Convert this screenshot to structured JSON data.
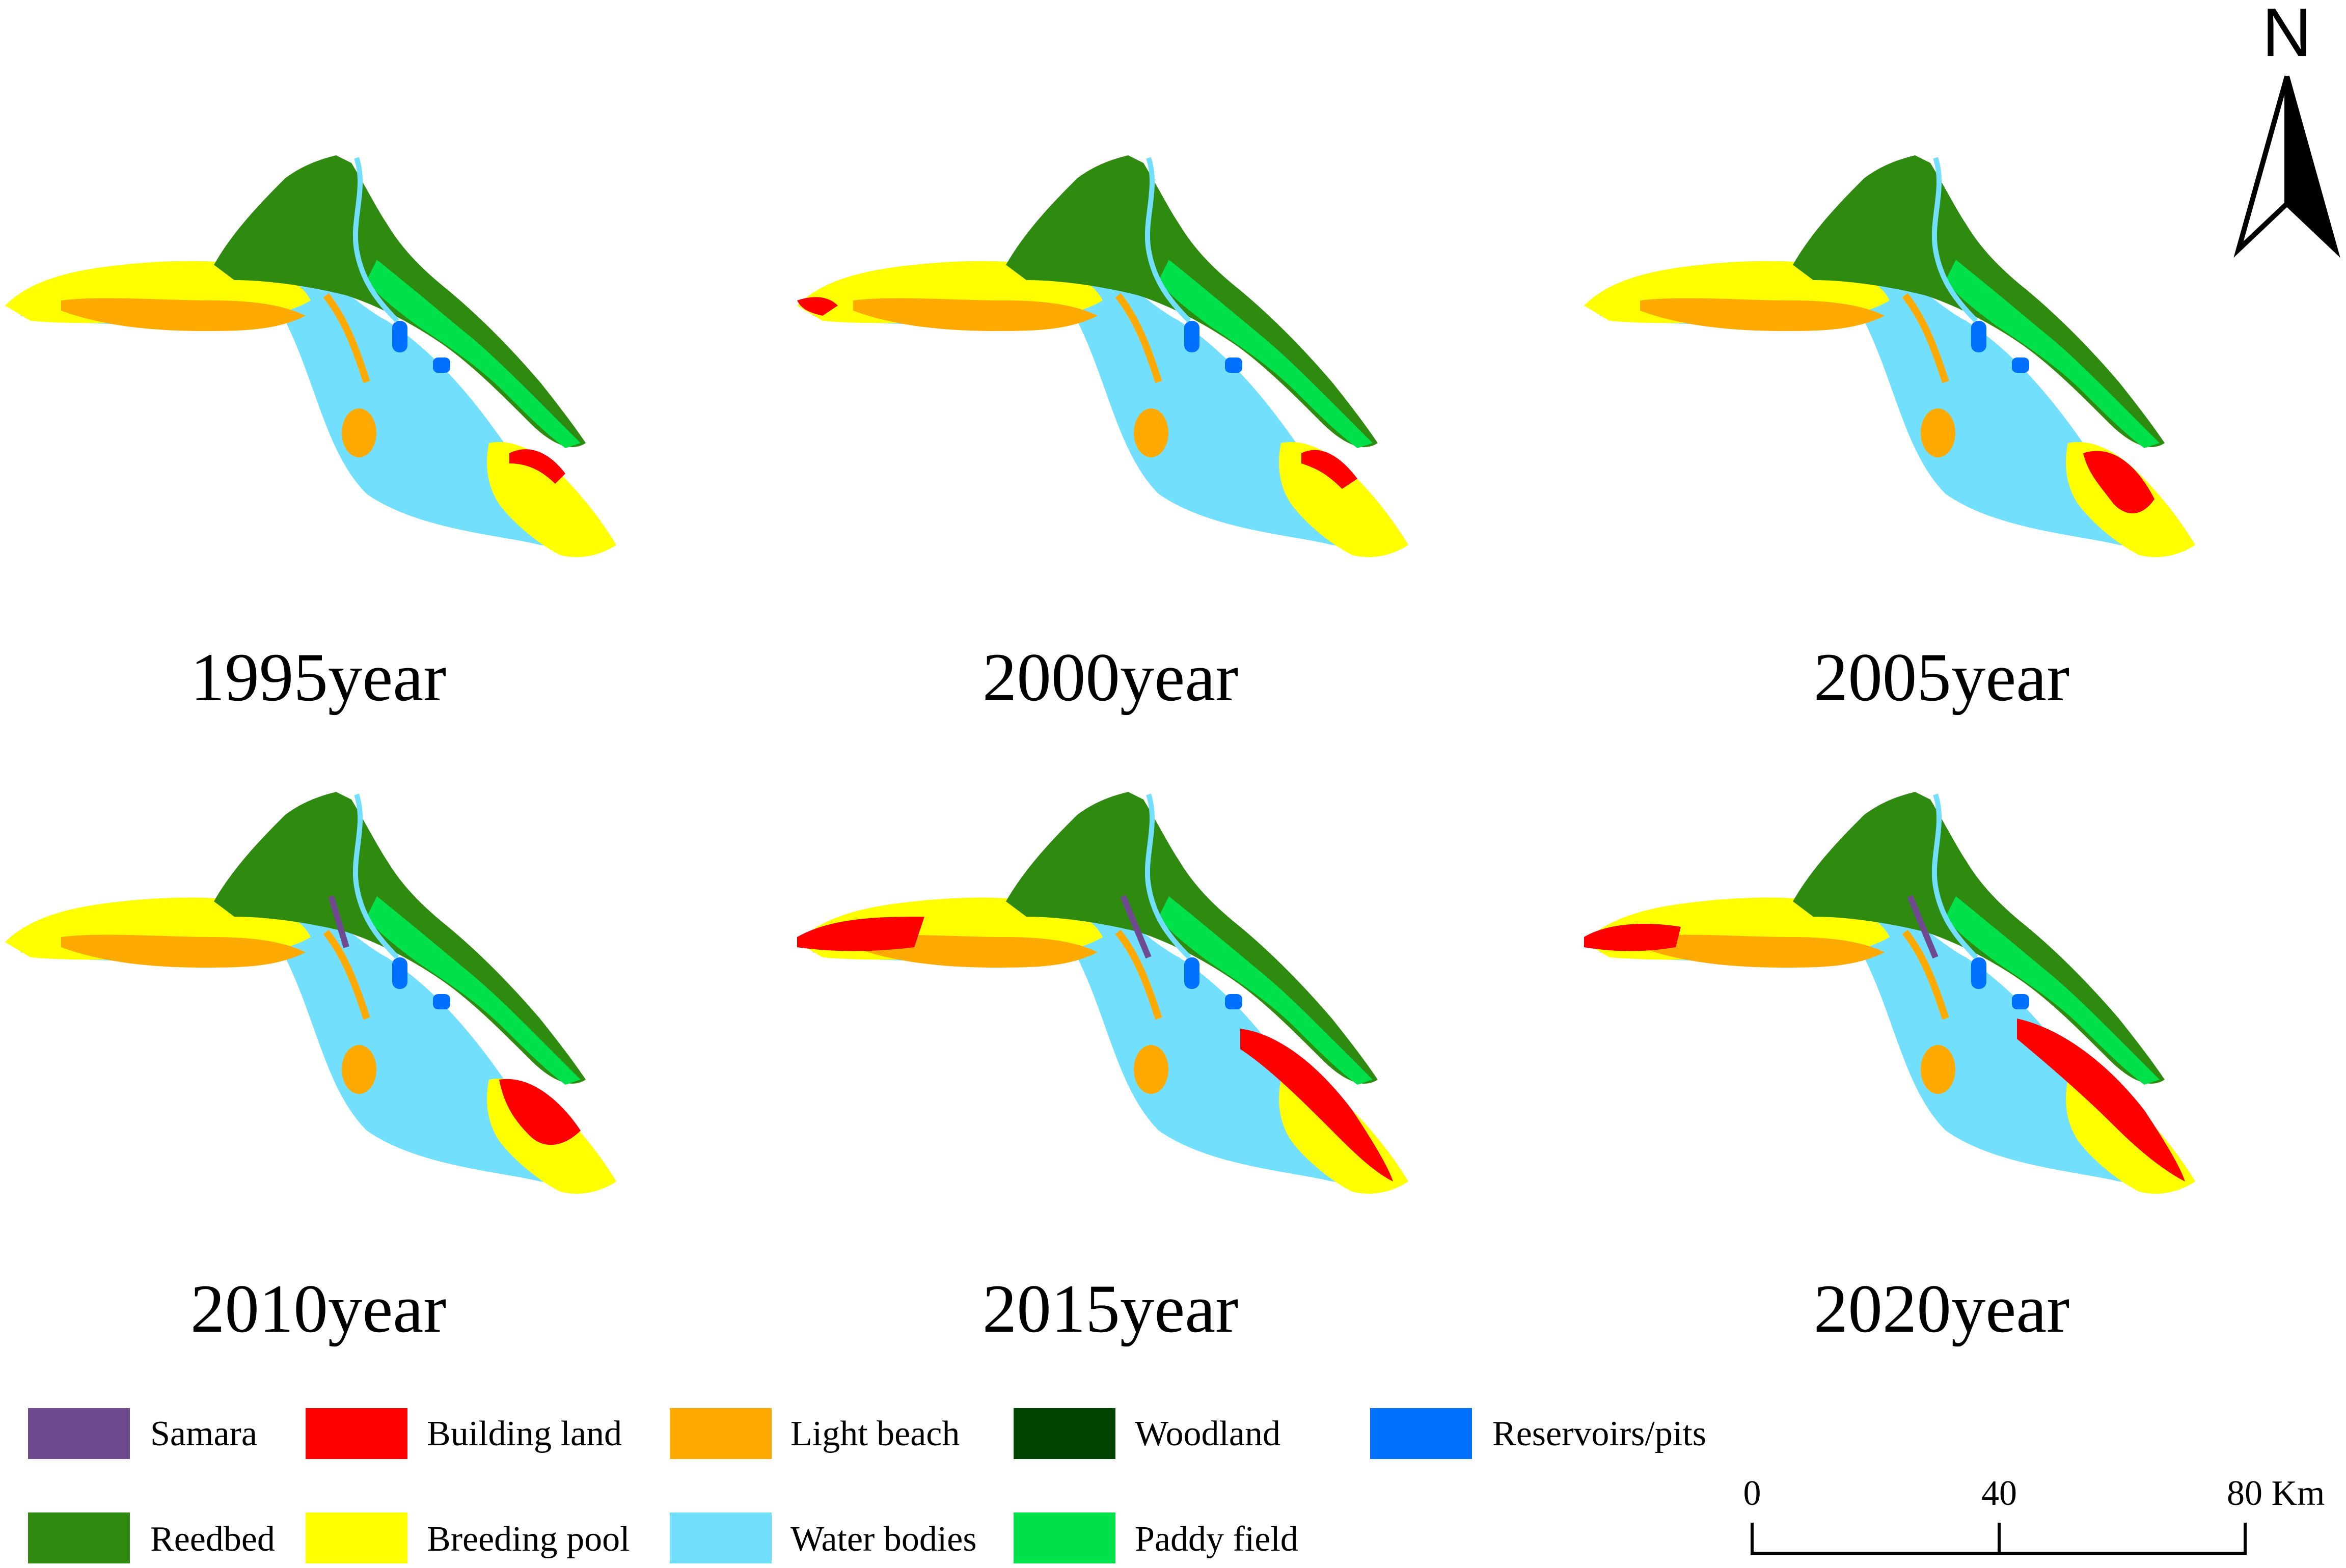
{
  "panels": [
    {
      "label": "1995year"
    },
    {
      "label": "2000year"
    },
    {
      "label": "2005year"
    },
    {
      "label": "2010year"
    },
    {
      "label": "2015year"
    },
    {
      "label": "2020year"
    }
  ],
  "legend": [
    {
      "label": "Samara",
      "color": "#6f4a8e"
    },
    {
      "label": "Building land",
      "color": "#ff0000"
    },
    {
      "label": "Light beach",
      "color": "#ffaa00"
    },
    {
      "label": "Woodland",
      "color": "#004400"
    },
    {
      "label": "Reservoirs/pits",
      "color": "#0070ff"
    },
    {
      "label": "Reedbed",
      "color": "#2e8b10"
    },
    {
      "label": "Breeding pool",
      "color": "#ffff00"
    },
    {
      "label": "Water bodies",
      "color": "#73dfff"
    },
    {
      "label": "Paddy field",
      "color": "#00e04a"
    }
  ],
  "north_arrow": {
    "label": "N",
    "icon": "north-arrow-icon"
  },
  "scale_bar": {
    "ticks": [
      "0",
      "40",
      "80 Km"
    ]
  }
}
